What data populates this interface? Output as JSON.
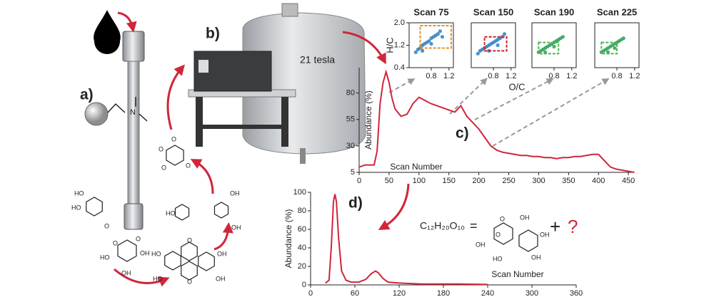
{
  "panel_labels": [
    "a)",
    "b)",
    "c)",
    "d)"
  ],
  "magnet_label": "21 tesla",
  "formula": "C₁₂H₂₀O₁₀",
  "equals": "=",
  "plus": "+",
  "question": "?",
  "amine_atom": "N",
  "molecule_text": [
    "HO",
    "HO",
    "O",
    "O",
    "O",
    "OH",
    "HO",
    "OH",
    "HO",
    "HO",
    "O",
    "O",
    "OH",
    "OH",
    "HO",
    "OH",
    "OH",
    "O",
    "O",
    "O",
    "O",
    "O",
    "OH",
    "OH",
    "HO",
    "OH",
    "O",
    "OH"
  ],
  "chart_data": [
    {
      "type": "scatter",
      "title": "Scan 75",
      "ylabel": "H/C",
      "color": "#2f7fc1",
      "box_color": "#e8901e",
      "x": [
        0.45,
        0.5,
        0.55,
        0.6,
        0.65,
        0.7,
        0.75,
        0.8,
        0.85,
        0.9,
        0.95,
        1.0,
        0.6,
        0.8,
        1.05
      ],
      "y": [
        0.95,
        1.05,
        1.1,
        1.2,
        1.25,
        1.3,
        1.35,
        1.45,
        1.5,
        1.55,
        1.6,
        1.7,
        1.0,
        1.25,
        1.5
      ],
      "xlim": [
        0.3,
        1.3
      ],
      "ylim": [
        0.4,
        2.0
      ],
      "xticks": [
        0.8,
        1.2
      ],
      "yticks": [
        0.4,
        1.2,
        {
          "value": 2,
          "label": "2.0"
        }
      ]
    },
    {
      "type": "scatter",
      "title": "Scan 150",
      "xlabel": "O/C",
      "color": "#2f7fc1",
      "box_color": "#c8202e",
      "x": [
        0.45,
        0.5,
        0.55,
        0.6,
        0.65,
        0.7,
        0.75,
        0.8,
        0.85,
        0.9,
        0.95,
        1.0,
        1.05,
        0.7,
        0.9
      ],
      "y": [
        0.9,
        1.0,
        1.05,
        1.1,
        1.15,
        1.2,
        1.25,
        1.3,
        1.35,
        1.4,
        1.45,
        1.5,
        1.6,
        1.0,
        1.2
      ],
      "xlim": [
        0.3,
        1.3
      ],
      "ylim": [
        0.4,
        2.0
      ],
      "xticks": [
        0.8,
        1.2
      ]
    },
    {
      "type": "scatter",
      "title": "Scan 190",
      "color": "#2f9e5a",
      "box_color": "#4cb848",
      "x": [
        0.45,
        0.5,
        0.55,
        0.6,
        0.65,
        0.7,
        0.75,
        0.8,
        0.85,
        0.9,
        0.95,
        1.0,
        0.6,
        0.8
      ],
      "y": [
        0.95,
        1.0,
        1.05,
        1.1,
        1.15,
        1.2,
        1.25,
        1.3,
        1.35,
        1.4,
        1.45,
        1.5,
        0.95,
        1.15
      ],
      "xlim": [
        0.3,
        1.3
      ],
      "ylim": [
        0.4,
        2.0
      ],
      "xticks": [
        0.8,
        1.2
      ]
    },
    {
      "type": "scatter",
      "title": "Scan 225",
      "color": "#2f9e5a",
      "box_color": "#4cb848",
      "x": [
        0.45,
        0.5,
        0.55,
        0.6,
        0.65,
        0.7,
        0.75,
        0.8,
        0.85,
        0.9,
        0.95,
        0.6,
        0.75
      ],
      "y": [
        0.95,
        1.0,
        1.05,
        1.1,
        1.15,
        1.2,
        1.25,
        1.3,
        1.35,
        1.4,
        1.45,
        0.95,
        1.1
      ],
      "xlim": [
        0.3,
        1.3
      ],
      "ylim": [
        0.4,
        2.0
      ],
      "xticks": [
        0.8,
        1.2
      ]
    },
    {
      "type": "line",
      "ylabel": "Abundance (%)",
      "xlabel": "Scan Number",
      "color": "#d0263a",
      "x": [
        0,
        10,
        20,
        25,
        30,
        35,
        40,
        45,
        50,
        55,
        60,
        70,
        80,
        90,
        100,
        110,
        120,
        130,
        140,
        150,
        160,
        170,
        180,
        190,
        200,
        210,
        220,
        230,
        240,
        250,
        260,
        270,
        280,
        290,
        300,
        310,
        320,
        330,
        340,
        350,
        360,
        370,
        380,
        390,
        400,
        410,
        420,
        430,
        440,
        450,
        460
      ],
      "values": [
        10,
        12,
        12,
        12,
        25,
        70,
        90,
        100,
        90,
        75,
        65,
        58,
        60,
        70,
        76,
        73,
        70,
        68,
        66,
        64,
        62,
        68,
        58,
        52,
        46,
        38,
        30,
        26,
        24,
        23,
        22,
        21,
        21,
        20,
        20,
        19,
        19,
        18,
        19,
        19,
        20,
        20,
        21,
        22,
        22,
        16,
        10,
        8,
        7,
        6,
        5
      ],
      "xlim": [
        0,
        460
      ],
      "ylim": [
        5,
        104
      ],
      "xticks": [
        0,
        50,
        100,
        150,
        200,
        250,
        300,
        350,
        400,
        450
      ],
      "yticks": [
        5,
        30,
        55,
        80
      ]
    },
    {
      "type": "line",
      "ylabel": "Abundance (%)",
      "xlabel": "Scan Number",
      "color": "#d0263a",
      "x": [
        20,
        25,
        28,
        31,
        33,
        35,
        38,
        42,
        48,
        55,
        65,
        75,
        82,
        88,
        92,
        98,
        105,
        120,
        150,
        200,
        240
      ],
      "values": [
        2,
        5,
        40,
        90,
        98,
        90,
        50,
        15,
        5,
        3,
        3,
        6,
        12,
        15,
        13,
        7,
        3,
        2,
        1,
        1,
        0.5
      ],
      "xlim": [
        0,
        360
      ],
      "ylim": [
        0,
        100
      ],
      "xticks": [
        0,
        60,
        120,
        180,
        240,
        300,
        360
      ],
      "yticks": [
        0,
        20,
        40,
        60,
        80,
        100
      ]
    }
  ]
}
